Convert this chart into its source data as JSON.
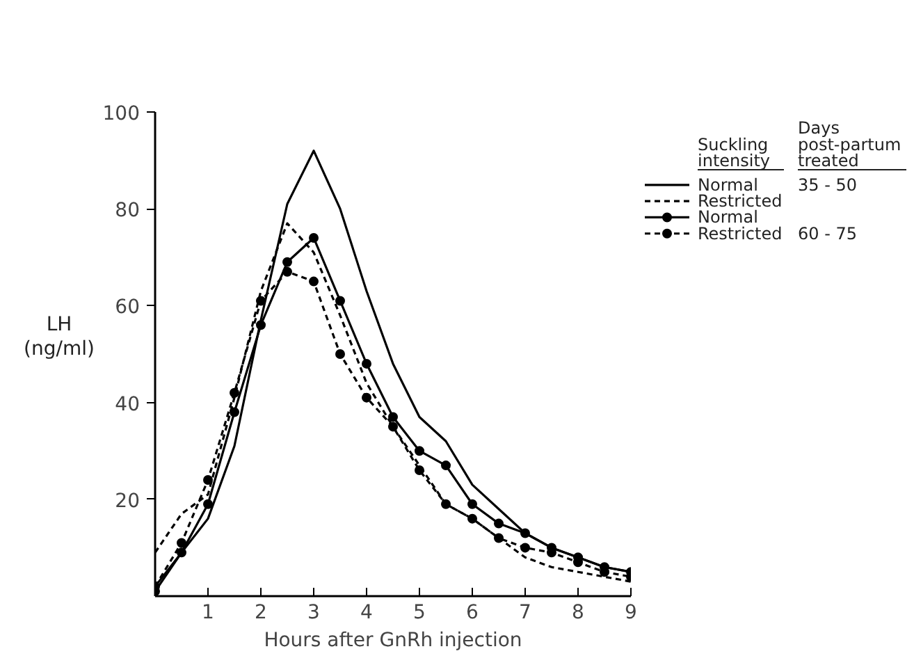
{
  "chart_data": {
    "type": "line",
    "xlabel": "Hours after GnRh injection",
    "ylabel": "LH (ng/ml)",
    "legend_title": "Suckling intensity",
    "annotations": [
      "Days post-partum treated",
      "35 - 50",
      "60 - 75"
    ],
    "x": [
      0,
      0.5,
      1,
      1.5,
      2,
      2.5,
      3,
      3.5,
      4,
      4.5,
      5,
      5.5,
      6,
      6.5,
      7,
      7.5,
      8,
      8.5,
      9
    ],
    "xlim": [
      0,
      9
    ],
    "xticks": [
      1,
      2,
      3,
      4,
      5,
      6,
      7,
      8,
      9
    ],
    "ylim": [
      0,
      100
    ],
    "yticks": [
      20,
      40,
      60,
      80,
      100
    ],
    "grid": false,
    "legend": "top right",
    "series": [
      {
        "name": "Normal",
        "color": "#000000",
        "marker": "none",
        "line_style": "solid",
        "values": [
          2,
          9,
          16,
          31,
          57,
          81,
          92,
          80,
          63,
          48,
          37,
          32,
          23,
          18,
          13,
          10,
          8,
          6,
          5
        ]
      },
      {
        "name": "Restricted",
        "color": "#000000",
        "marker": "none",
        "line_style": "dashed",
        "values": [
          9,
          17,
          21,
          41,
          63,
          77,
          71,
          58,
          44,
          35,
          27,
          19,
          16,
          12,
          8,
          6,
          5,
          4,
          3
        ]
      },
      {
        "name": "Normal",
        "color": "#000000",
        "marker": "circle",
        "line_style": "solid",
        "values": [
          1,
          9,
          19,
          38,
          56,
          69,
          74,
          61,
          48,
          37,
          30,
          27,
          19,
          15,
          13,
          10,
          8,
          6,
          5
        ]
      },
      {
        "name": "Restricted",
        "color": "#000000",
        "marker": "circle",
        "line_style": "dashed",
        "values": [
          2,
          11,
          24,
          42,
          61,
          67,
          65,
          50,
          41,
          35,
          26,
          19,
          16,
          12,
          10,
          9,
          7,
          5,
          4
        ]
      }
    ]
  }
}
